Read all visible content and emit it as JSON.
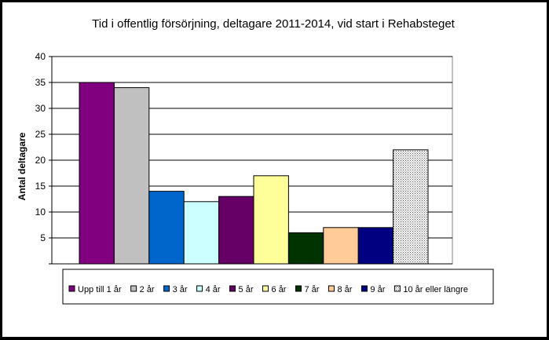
{
  "chart_data": {
    "type": "bar",
    "title": "Tid i offentlig försörjning, deltagare 2011-2014, vid start i Rehabsteget",
    "ylabel": "Antal deltagare",
    "xlabel": "",
    "ylim": [
      0,
      40
    ],
    "yticks": [
      0,
      5,
      10,
      15,
      20,
      25,
      30,
      35,
      40
    ],
    "grid": true,
    "legend_position": "bottom",
    "series": [
      {
        "name": "Upp till 1 år",
        "value": 35,
        "color": "#800080",
        "pattern": "solid"
      },
      {
        "name": "2 år",
        "value": 34,
        "color": "#c0c0c0",
        "pattern": "solid"
      },
      {
        "name": "3 år",
        "value": 14,
        "color": "#0066cc",
        "pattern": "solid"
      },
      {
        "name": "4 år",
        "value": 12,
        "color": "#ccffff",
        "pattern": "solid"
      },
      {
        "name": "5 år",
        "value": 13,
        "color": "#660066",
        "pattern": "solid"
      },
      {
        "name": "6 år",
        "value": 17,
        "color": "#ffff99",
        "pattern": "solid"
      },
      {
        "name": "7 år",
        "value": 6,
        "color": "#003300",
        "pattern": "solid"
      },
      {
        "name": "8 år",
        "value": 7,
        "color": "#ffcc99",
        "pattern": "solid"
      },
      {
        "name": "9 år",
        "value": 7,
        "color": "#000080",
        "pattern": "solid"
      },
      {
        "name": "10 år eller längre",
        "value": 22,
        "color": "#d8d8d8",
        "pattern": "dotted"
      }
    ]
  }
}
